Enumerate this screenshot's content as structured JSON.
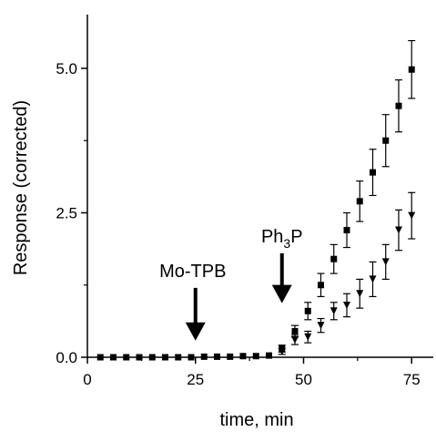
{
  "chart_data": {
    "type": "scatter",
    "title": "",
    "xlabel": "time, min",
    "ylabel": "Response (corrected)",
    "xlim": [
      0,
      80
    ],
    "ylim": [
      0,
      5.8
    ],
    "xticks": [
      0,
      25,
      50,
      75
    ],
    "xtick_labels": [
      "0",
      "25",
      "50",
      "75"
    ],
    "yticks": [
      0,
      2.5,
      5.0
    ],
    "ytick_labels": [
      "0.0",
      "2.5",
      "5.0"
    ],
    "grid": false,
    "legend": "none",
    "series": [
      {
        "marker": "square",
        "x": [
          3,
          6,
          9,
          12,
          15,
          18,
          21,
          24,
          27,
          30,
          33,
          36,
          39,
          42,
          45,
          48,
          51,
          54,
          57,
          60,
          63,
          66,
          69,
          72,
          75
        ],
        "y": [
          0,
          0,
          0,
          0,
          0,
          0,
          0,
          0,
          0.01,
          0.01,
          0.01,
          0.02,
          0.02,
          0.03,
          0.15,
          0.45,
          0.8,
          1.25,
          1.7,
          2.2,
          2.7,
          3.2,
          3.75,
          4.35,
          4.98
        ],
        "err": [
          0,
          0,
          0,
          0,
          0,
          0,
          0,
          0,
          0,
          0,
          0,
          0,
          0,
          0,
          0.06,
          0.1,
          0.15,
          0.2,
          0.25,
          0.3,
          0.35,
          0.4,
          0.45,
          0.45,
          0.5
        ]
      },
      {
        "marker": "triangle-down",
        "x": [
          45,
          48,
          51,
          54,
          57,
          60,
          63,
          66,
          69,
          72,
          75
        ],
        "y": [
          0.1,
          0.3,
          0.35,
          0.55,
          0.8,
          0.9,
          1.1,
          1.35,
          1.65,
          2.2,
          2.45
        ],
        "err": [
          0.05,
          0.08,
          0.1,
          0.12,
          0.15,
          0.2,
          0.25,
          0.3,
          0.3,
          0.35,
          0.4
        ]
      }
    ],
    "annotations": [
      {
        "text": "Mo-TPB",
        "x": 25,
        "arrow_from_y": 1.2,
        "arrow_to_y": 0.35
      },
      {
        "text_main": "Ph",
        "text_sub": "3",
        "text_tail": "P",
        "x": 45,
        "arrow_from_y": 1.8,
        "arrow_to_y": 1.0
      }
    ]
  }
}
